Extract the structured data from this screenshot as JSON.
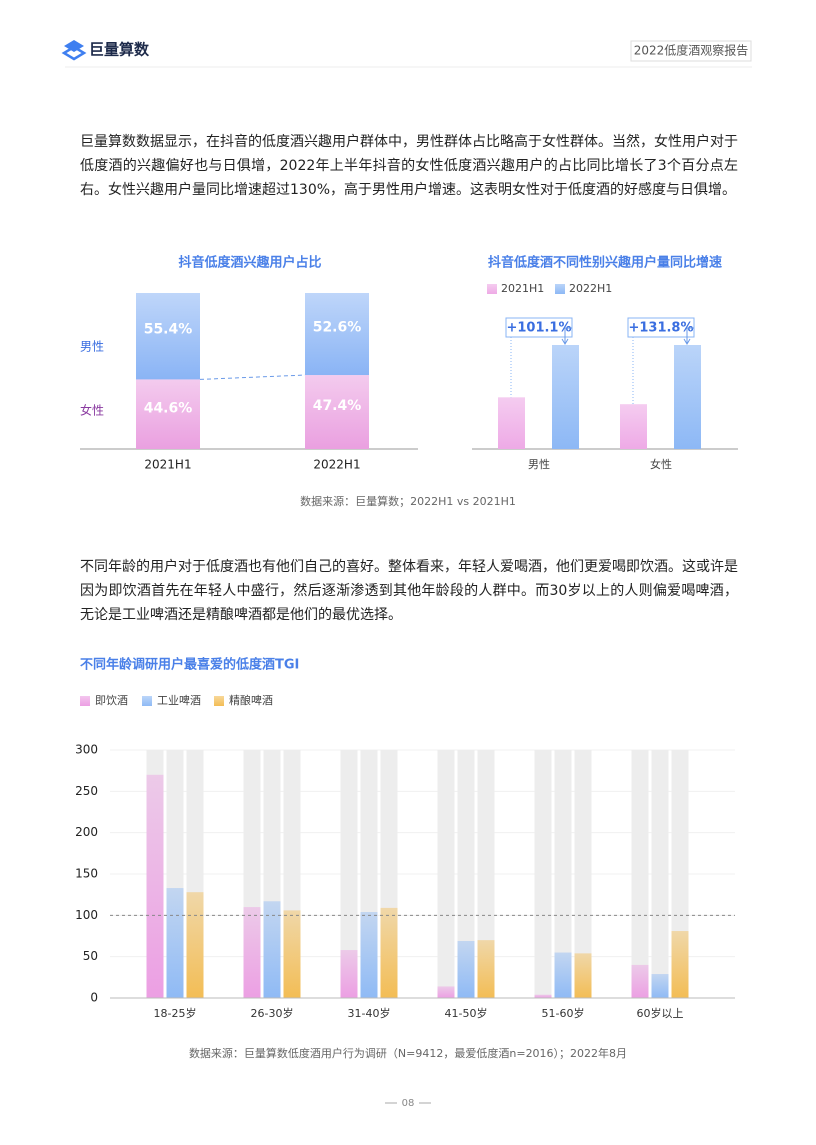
{
  "header": {
    "brand": "巨量算数",
    "report": "2022低度酒观察报告"
  },
  "paragraphs": [
    "巨量算数数据显示，在抖音的低度酒兴趣用户群体中，男性群体占比略高于女性群体。当然，女性用户对于低度酒的兴趣偏好也与日俱增，2022年上半年抖音的女性低度酒兴趣用户的占比同比增长了3个百分点左右。女性兴趣用户量同比增速超过130%，高于男性用户增速。这表明女性对于低度酒的好感度与日俱增。",
    "不同年龄的用户对于低度酒也有他们自己的喜好。整体看来，年轻人爱喝酒，他们更爱喝即饮酒。这或许是因为即饮酒首先在年轻人中盛行，然后逐渐渗透到其他年龄段的人群中。而30岁以上的人则偏爱喝啤酒，无论是工业啤酒还是精酿啤酒都是他们的最优选择。"
  ],
  "chart_data": [
    {
      "type": "stacked-bar",
      "title": "抖音低度酒兴趣用户占比",
      "categories": [
        "2021H1",
        "2022H1"
      ],
      "series": [
        {
          "name": "女性",
          "color": "#eaa0e0",
          "values": [
            44.6,
            47.4
          ],
          "value_labels": [
            "44.6%",
            "47.4%"
          ]
        },
        {
          "name": "男性",
          "color": "#8ab4f5",
          "values": [
            55.4,
            52.6
          ],
          "value_labels": [
            "55.4%",
            "52.6%"
          ]
        }
      ]
    },
    {
      "type": "bar",
      "title": "抖音低度酒不同性别兴趣用户量同比增速",
      "categories": [
        "男性",
        "女性"
      ],
      "series": [
        {
          "name": "2021H1",
          "color": "#eeaae6",
          "values": [
            49.7,
            43.1
          ]
        },
        {
          "name": "2022H1",
          "color": "#8db8f5",
          "values": [
            100,
            100
          ]
        }
      ],
      "annotations": [
        "+101.1%",
        "+131.8%"
      ]
    },
    {
      "type": "grouped-bar",
      "title": "不同年龄调研用户最喜爱的低度酒TGI",
      "categories": [
        "18-25岁",
        "26-30岁",
        "31-40岁",
        "41-50岁",
        "51-60岁",
        "60岁以上"
      ],
      "series": [
        {
          "name": "即饮酒",
          "color": "#ec9fe3",
          "values": [
            270,
            110,
            58,
            14,
            4,
            40
          ]
        },
        {
          "name": "工业啤酒",
          "color": "#8fbaf5",
          "values": [
            133,
            117,
            104,
            69,
            55,
            29
          ]
        },
        {
          "name": "精酿啤酒",
          "color": "#f3bd55",
          "values": [
            128,
            106,
            109,
            70,
            54,
            81
          ]
        }
      ],
      "ylim": [
        0,
        300
      ],
      "yticks": [
        0,
        50,
        100,
        150,
        200,
        250,
        300
      ],
      "reference_line": 100,
      "grid": true
    }
  ],
  "sources": [
    "数据来源：巨量算数；2022H1 vs 2021H1",
    "数据来源：巨量算数低度酒用户行为调研（N=9412，最爱低度酒n=2016）；2022年8月"
  ],
  "page_number": "08"
}
